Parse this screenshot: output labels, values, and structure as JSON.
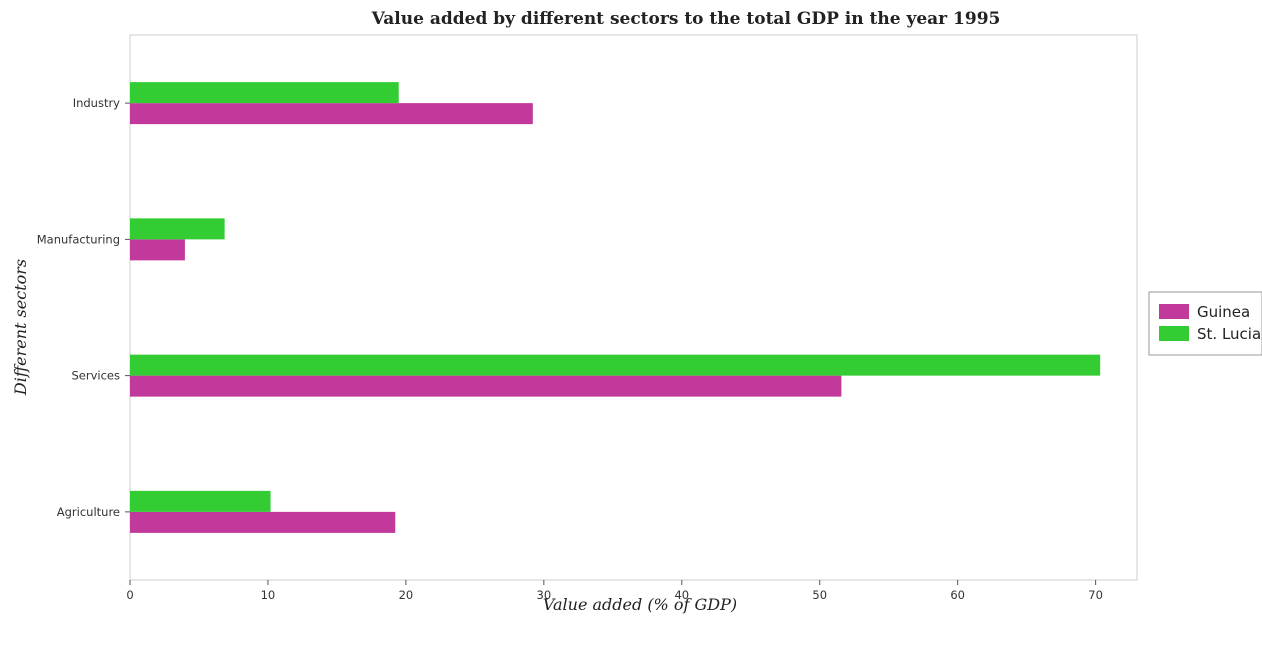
{
  "chart_data": {
    "type": "bar",
    "orientation": "horizontal",
    "title": "Value added by different sectors to the total GDP in the year 1995",
    "xlabel": "Value added (% of GDP)",
    "ylabel": "Different sectors",
    "categories": [
      "Industry",
      "Manufacturing",
      "Services",
      "Agriculture"
    ],
    "series": [
      {
        "name": "Guinea",
        "color": "#c0399b",
        "values": [
          29.2,
          3.98,
          51.57,
          19.23
        ]
      },
      {
        "name": "St. Lucia",
        "color": "#33cc33",
        "values": [
          19.48,
          6.86,
          70.33,
          10.19
        ]
      }
    ],
    "xlim": [
      0,
      73
    ],
    "xticks": [
      0,
      10,
      20,
      30,
      40,
      50,
      60,
      70
    ],
    "grid": false,
    "legend_position": "right"
  }
}
